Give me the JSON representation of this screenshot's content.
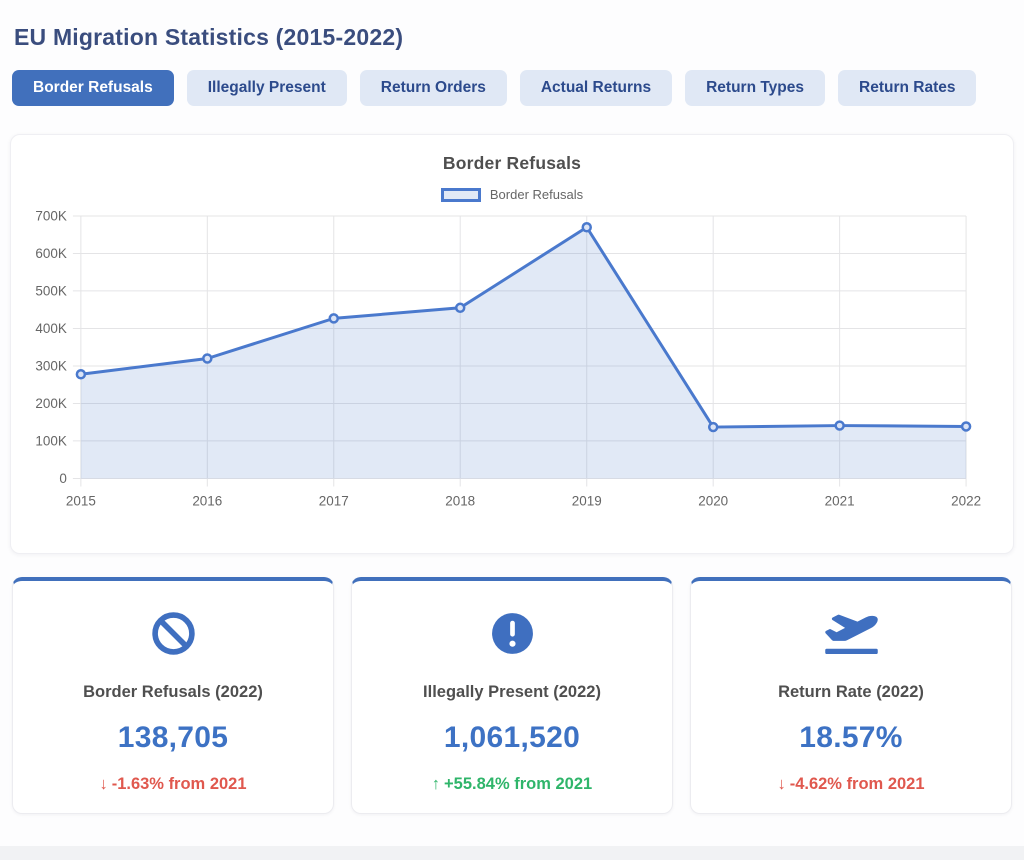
{
  "page": {
    "title": "EU Migration Statistics (2015-2022)"
  },
  "tabs": [
    {
      "label": "Border Refusals",
      "active": true
    },
    {
      "label": "Illegally Present",
      "active": false
    },
    {
      "label": "Return Orders",
      "active": false
    },
    {
      "label": "Actual Returns",
      "active": false
    },
    {
      "label": "Return Types",
      "active": false
    },
    {
      "label": "Return Rates",
      "active": false
    }
  ],
  "chart": {
    "title": "Border Refusals",
    "legend_label": "Border Refusals"
  },
  "chart_data": {
    "type": "area",
    "title": "Border Refusals",
    "categories": [
      "2015",
      "2016",
      "2017",
      "2018",
      "2019",
      "2020",
      "2021",
      "2022"
    ],
    "series": [
      {
        "name": "Border Refusals",
        "values": [
          278000,
          320000,
          427000,
          455000,
          670000,
          137000,
          141000,
          138705
        ]
      }
    ],
    "xlabel": "",
    "ylabel": "",
    "ylim": [
      0,
      700000
    ],
    "yticks": [
      {
        "value": 0,
        "label": "0"
      },
      {
        "value": 100000,
        "label": "100K"
      },
      {
        "value": 200000,
        "label": "200K"
      },
      {
        "value": 300000,
        "label": "300K"
      },
      {
        "value": 400000,
        "label": "400K"
      },
      {
        "value": 500000,
        "label": "500K"
      },
      {
        "value": 600000,
        "label": "600K"
      },
      {
        "value": 700000,
        "label": "700K"
      }
    ],
    "grid": true,
    "legend_position": "top"
  },
  "cards": [
    {
      "icon": "no-entry-icon",
      "title": "Border Refusals (2022)",
      "value": "138,705",
      "arrow": "↓",
      "change": "-1.63% from 2021",
      "direction": "down"
    },
    {
      "icon": "exclamation-icon",
      "title": "Illegally Present (2022)",
      "value": "1,061,520",
      "arrow": "↑",
      "change": "+55.84% from 2021",
      "direction": "up"
    },
    {
      "icon": "plane-departure-icon",
      "title": "Return Rate (2022)",
      "value": "18.57%",
      "arrow": "↓",
      "change": "-4.62% from 2021",
      "direction": "down"
    }
  ],
  "colors": {
    "accent": "#4170bc",
    "line": "#4a79cd",
    "area_fill": "rgba(71,118,198,0.16)",
    "point_fill": "#dbe4f6",
    "grid": "#e4e4e6",
    "tick_text": "#666666",
    "value_blue": "#3d72c4",
    "down_red": "#e0584e",
    "up_green": "#2fb56a",
    "icon_blue": "#3f6fc0"
  }
}
